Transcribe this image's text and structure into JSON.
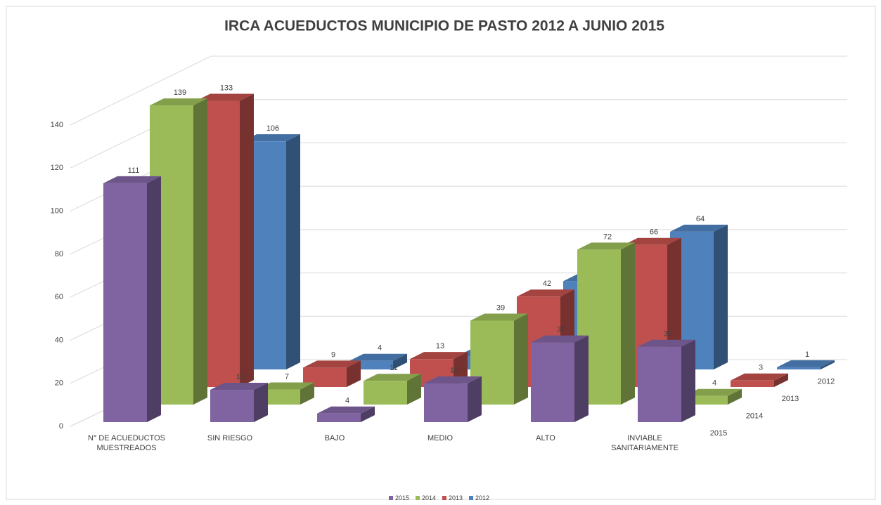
{
  "chart_data": {
    "type": "bar3d",
    "title": "IRCA ACUEDUCTOS MUNICIPIO DE PASTO 2012 A JUNIO 2015",
    "categories": [
      "N° DE ACUEDUCTOS MUESTREADOS",
      "SIN RIESGO",
      "BAJO",
      "MEDIO",
      "ALTO",
      "INVIABLE SANITARIAMENTE"
    ],
    "series": [
      {
        "name": "2015",
        "color": "#8064a2",
        "values": [
          111,
          15,
          4,
          18,
          37,
          35
        ]
      },
      {
        "name": "2014",
        "color": "#9bbb59",
        "values": [
          139,
          7,
          11,
          39,
          72,
          4
        ]
      },
      {
        "name": "2013",
        "color": "#c0504d",
        "values": [
          133,
          9,
          13,
          42,
          66,
          3
        ]
      },
      {
        "name": "2012",
        "color": "#4f81bd",
        "values": [
          106,
          4,
          6,
          41,
          64,
          1
        ]
      }
    ],
    "ylim": [
      0,
      140
    ],
    "yticks": [
      0,
      20,
      40,
      60,
      80,
      100,
      120,
      140
    ],
    "grid": true,
    "legend": "bottom"
  }
}
